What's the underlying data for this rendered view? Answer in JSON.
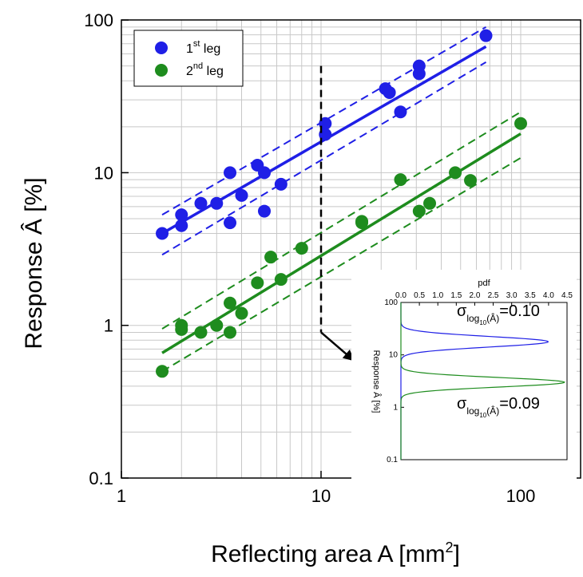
{
  "chart_data": [
    {
      "type": "scatter",
      "scale": "log-log",
      "xlabel": "Reflecting area A [mm",
      "xlabel_sup": "2",
      "xlabel_end": "]",
      "ylabel": "Response Â [%]",
      "xlim": [
        1,
        200
      ],
      "ylim": [
        0.1,
        100
      ],
      "x_ticks": [
        {
          "v": 1,
          "label": "1"
        },
        {
          "v": 10,
          "label": "10"
        },
        {
          "v": 100,
          "label": "100"
        }
      ],
      "y_ticks": [
        {
          "v": 0.1,
          "label": "0.1"
        },
        {
          "v": 1,
          "label": "1"
        },
        {
          "v": 10,
          "label": "10"
        },
        {
          "v": 100,
          "label": "100"
        }
      ],
      "grid": true,
      "legend_position": "top-left",
      "series": [
        {
          "name": "1",
          "name_sup": "st",
          "name_end": " leg",
          "color": "#1f1fe6",
          "points": [
            [
              1.6,
              4.0
            ],
            [
              2.0,
              4.5
            ],
            [
              2.0,
              5.3
            ],
            [
              2.5,
              6.3
            ],
            [
              3.0,
              6.3
            ],
            [
              3.5,
              10.0
            ],
            [
              3.5,
              4.7
            ],
            [
              4.0,
              7.1
            ],
            [
              4.8,
              11.2
            ],
            [
              5.2,
              10.0
            ],
            [
              5.2,
              5.6
            ],
            [
              6.3,
              8.4
            ],
            [
              10.5,
              21.0
            ],
            [
              10.5,
              17.8
            ],
            [
              21.0,
              35.5
            ],
            [
              22.0,
              33.5
            ],
            [
              25.0,
              25.0
            ],
            [
              31.0,
              50.0
            ],
            [
              31.0,
              44.5
            ],
            [
              67.0,
              79.0
            ]
          ],
          "fit": [
            [
              1.6,
              4.0
            ],
            [
              67.0,
              67.0
            ]
          ],
          "band_upper": [
            [
              1.6,
              5.3
            ],
            [
              67.0,
              90.0
            ]
          ],
          "band_lower": [
            [
              1.6,
              2.9
            ],
            [
              67.0,
              53.0
            ]
          ]
        },
        {
          "name": "2",
          "name_sup": "nd",
          "name_end": " leg",
          "color": "#1e8c1e",
          "points": [
            [
              1.6,
              0.5
            ],
            [
              2.0,
              1.0
            ],
            [
              2.0,
              0.94
            ],
            [
              2.5,
              0.9
            ],
            [
              3.0,
              1.0
            ],
            [
              3.5,
              0.9
            ],
            [
              3.5,
              1.4
            ],
            [
              4.0,
              1.2
            ],
            [
              4.8,
              1.9
            ],
            [
              5.6,
              2.8
            ],
            [
              6.3,
              2.0
            ],
            [
              8.0,
              3.2
            ],
            [
              16.0,
              4.7
            ],
            [
              16.0,
              4.8
            ],
            [
              25.0,
              9.0
            ],
            [
              31.0,
              5.6
            ],
            [
              35.0,
              6.3
            ],
            [
              47.0,
              10.0
            ],
            [
              56.0,
              8.9
            ],
            [
              100.0,
              21.0
            ]
          ],
          "fit": [
            [
              1.6,
              0.66
            ],
            [
              100.0,
              18.0
            ]
          ],
          "band_upper": [
            [
              1.6,
              0.95
            ],
            [
              100.0,
              25.0
            ]
          ],
          "band_lower": [
            [
              1.6,
              0.5
            ],
            [
              100.0,
              12.5
            ]
          ]
        }
      ],
      "annotations": {
        "dashed_marker_x": 10,
        "dashed_marker_y": [
          0.9,
          50
        ]
      }
    },
    {
      "type": "line",
      "xlabel": "pdf",
      "ylabel": "Response Â [%]",
      "xlim": [
        0,
        4.5
      ],
      "ylim": [
        0.1,
        100
      ],
      "x_ticks": [
        "0.0",
        "0.5",
        "1.0",
        "1.5",
        "2.0",
        "2.5",
        "3.0",
        "3.5",
        "4.0",
        "4.5"
      ],
      "y_ticks": [
        {
          "v": 0.1,
          "label": "0.1"
        },
        {
          "v": 1,
          "label": "1"
        },
        {
          "v": 10,
          "label": "10"
        },
        {
          "v": 100,
          "label": "100"
        }
      ],
      "series": [
        {
          "color": "#1f1fe6",
          "center": 17.8,
          "sigma": 0.1,
          "sigma_label": "=0.10"
        },
        {
          "color": "#1e8c1e",
          "center": 3.0,
          "sigma": 0.09,
          "sigma_label": "=0.09"
        }
      ],
      "sigma_symbol": "σ",
      "sigma_sub": "log",
      "sigma_sub2": "10",
      "sigma_sub3": "(Â)"
    }
  ]
}
